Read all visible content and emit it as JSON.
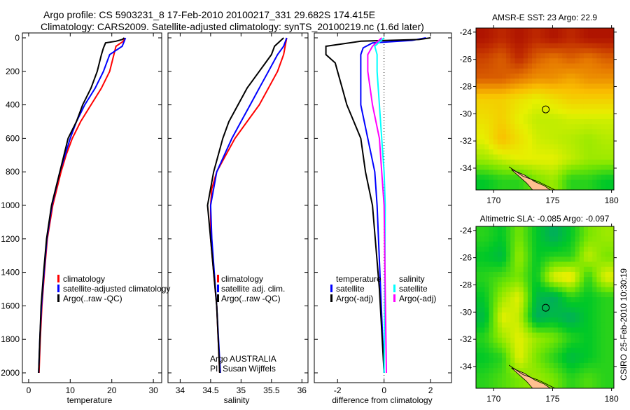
{
  "title_line1": "Argo profile: CS 5903231_8 17-Feb-2010 20100217_331 29.682S 174.415E",
  "title_line2": "Climatology: CARS2009. Satellite-adjusted climatology: synTS_20100219.nc (1.6d later)",
  "side_label": "CSIRO 25-Feb-2010 10:30:19",
  "colors": {
    "climatology": "#ff0000",
    "satellite": "#0000ff",
    "argo": "#000000",
    "sal_satellite": "#00ffff",
    "sal_argo": "#ff00ff"
  },
  "chart_data": [
    {
      "type": "line",
      "xlabel": "temperature",
      "ylabel": "",
      "xlim": [
        -1.5,
        32
      ],
      "ylim": [
        2050,
        0
      ],
      "xticks": [
        0,
        10,
        20,
        30
      ],
      "yticks": [
        0,
        200,
        400,
        600,
        800,
        1000,
        1200,
        1400,
        1600,
        1800,
        2000
      ],
      "legend": [
        "climatology",
        "satellite-adjusted climatology",
        "Argo(..raw -QC)"
      ],
      "legend_position": "lower-middle",
      "series": [
        {
          "name": "climatology",
          "color": "#ff0000",
          "depth": [
            0,
            20,
            50,
            100,
            200,
            300,
            400,
            500,
            600,
            700,
            800,
            1000,
            1200,
            1400,
            1600,
            1800,
            2000
          ],
          "values": [
            23,
            22.8,
            21,
            20.5,
            19.5,
            17.5,
            15,
            12.5,
            10.5,
            9,
            7.8,
            5.8,
            4.5,
            3.8,
            3.2,
            2.8,
            2.5
          ]
        },
        {
          "name": "satellite-adjusted climatology",
          "color": "#0000ff",
          "depth": [
            0,
            20,
            50,
            100,
            200,
            300,
            400,
            500,
            600,
            800,
            1000,
            1200,
            1400,
            1600,
            1800,
            2000
          ],
          "values": [
            23.3,
            23,
            22.5,
            19.5,
            18,
            16,
            13.5,
            11.5,
            10,
            7.5,
            5.6,
            4.4,
            3.7,
            3.1,
            2.7,
            2.4
          ]
        },
        {
          "name": "Argo(..raw -QC)",
          "color": "#000000",
          "depth": [
            0,
            10,
            20,
            30,
            60,
            100,
            200,
            300,
            400,
            500,
            600,
            800,
            1000,
            1200,
            1400,
            1600,
            1800,
            2000
          ],
          "values": [
            23,
            22.5,
            21,
            18.5,
            18,
            17.5,
            16.5,
            15,
            13,
            11.5,
            9.5,
            7.5,
            5.5,
            4.3,
            3.6,
            3,
            2.7,
            2.4
          ]
        }
      ]
    },
    {
      "type": "line",
      "xlabel": "salinity",
      "xlim": [
        33.8,
        36.1
      ],
      "ylim": [
        2050,
        0
      ],
      "xticks": [
        34,
        34.5,
        35,
        35.5,
        36
      ],
      "legend": [
        "climatology",
        "satellite adj. clim.",
        "Argo(..raw -QC)"
      ],
      "annotation": [
        "Argo AUSTRALIA",
        "PI: Susan Wijffels"
      ],
      "series": [
        {
          "name": "climatology",
          "color": "#ff0000",
          "depth": [
            0,
            100,
            200,
            300,
            400,
            500,
            600,
            700,
            800,
            900,
            1000,
            1200,
            1400,
            1600,
            2000
          ],
          "values": [
            35.75,
            35.7,
            35.6,
            35.45,
            35.3,
            35.1,
            34.9,
            34.75,
            34.6,
            34.52,
            34.5,
            34.5,
            34.55,
            34.6,
            34.65
          ]
        },
        {
          "name": "satellite adj. clim.",
          "color": "#0000ff",
          "depth": [
            0,
            50,
            100,
            200,
            300,
            400,
            500,
            600,
            800,
            1000,
            1200,
            1400,
            1600,
            2000
          ],
          "values": [
            35.75,
            35.7,
            35.6,
            35.45,
            35.3,
            35.15,
            35.0,
            34.85,
            34.6,
            34.5,
            34.52,
            34.56,
            34.6,
            34.66
          ]
        },
        {
          "name": "Argo(..raw -QC)",
          "color": "#000000",
          "depth": [
            0,
            50,
            100,
            200,
            300,
            400,
            500,
            600,
            800,
            1000,
            1200,
            1400,
            1600,
            2000
          ],
          "values": [
            35.7,
            35.55,
            35.5,
            35.3,
            35.1,
            34.95,
            34.8,
            34.7,
            34.55,
            34.45,
            34.5,
            34.55,
            34.6,
            34.65
          ]
        }
      ]
    },
    {
      "type": "line",
      "xlabel": "difference from climatology",
      "xlim": [
        -3,
        2.9
      ],
      "ylim": [
        2050,
        0
      ],
      "xticks": [
        -2,
        0,
        2
      ],
      "legend_headers": [
        "temperature",
        "salinity"
      ],
      "legend": [
        "satellite",
        "Argo(-adj)",
        "satellite",
        "Argo(-adj)"
      ],
      "series": [
        {
          "name": "temperature satellite",
          "color": "#0000ff",
          "depth": [
            0,
            15,
            30,
            60,
            100,
            200,
            400,
            600,
            800,
            1000,
            1500,
            2000
          ],
          "values": [
            1.8,
            1.2,
            -0.5,
            -0.9,
            -1,
            -1,
            -1,
            -0.7,
            -0.4,
            -0.3,
            -0.15,
            0
          ]
        },
        {
          "name": "temperature Argo(-adj)",
          "color": "#000000",
          "depth": [
            0,
            10,
            20,
            50,
            100,
            150,
            200,
            300,
            400,
            500,
            600,
            800,
            1000,
            1500,
            2000
          ],
          "values": [
            2,
            1.5,
            -1,
            -2.5,
            -2.5,
            -2.1,
            -2,
            -1.8,
            -1.6,
            -1.3,
            -1,
            -0.8,
            -0.5,
            -0.2,
            0
          ]
        },
        {
          "name": "salinity satellite",
          "color": "#00ffff",
          "depth": [
            0,
            50,
            100,
            200,
            400,
            600,
            800,
            1000,
            1500,
            2000
          ],
          "values": [
            0,
            -0.4,
            -0.3,
            -0.3,
            -0.2,
            -0.1,
            0,
            0.05,
            0.03,
            0
          ]
        },
        {
          "name": "salinity Argo(-adj)",
          "color": "#ff00ff",
          "depth": [
            0,
            50,
            100,
            200,
            400,
            600,
            800,
            1000,
            1500,
            2000
          ],
          "values": [
            -0.1,
            -0.5,
            -0.7,
            -0.7,
            -0.5,
            -0.2,
            -0.1,
            0,
            0.05,
            0.1
          ]
        }
      ]
    },
    {
      "type": "heatmap",
      "title": "AMSR-E SST: 23 Argo: 22.9",
      "xlim": [
        168.5,
        180.2
      ],
      "ylim": [
        -35.6,
        -23.7
      ],
      "xticks": [
        170,
        175,
        180
      ],
      "yticks": [
        -24,
        -26,
        -28,
        -30,
        -32,
        -34
      ],
      "marker": {
        "lon": 174.415,
        "lat": -29.682
      },
      "values": [
        [
          0.95,
          0.9,
          0.95,
          0.9,
          0.95,
          0.9,
          0.95,
          0.95
        ],
        [
          0.85,
          0.8,
          0.9,
          0.8,
          0.75,
          0.8,
          0.75,
          0.8
        ],
        [
          0.8,
          0.8,
          0.75,
          0.7,
          0.7,
          0.65,
          0.7,
          0.7
        ],
        [
          0.55,
          0.55,
          0.5,
          0.45,
          0.5,
          0.55,
          0.55,
          0.55
        ],
        [
          0.5,
          0.55,
          0.45,
          0.4,
          0.4,
          0.42,
          0.42,
          0.42
        ],
        [
          0.45,
          0.6,
          0.5,
          0.42,
          0.4,
          0.38,
          0.35,
          0.38
        ],
        [
          0.35,
          0.4,
          0.45,
          0.45,
          0.45,
          0.4,
          0.35,
          0.35
        ],
        [
          0.15,
          0.2,
          0.2,
          0.3,
          0.35,
          0.2,
          0.2,
          0.15
        ]
      ]
    },
    {
      "type": "heatmap",
      "title": "Altimetric SLA: -0.085 Argo: -0.097",
      "xlim": [
        168.5,
        180.2
      ],
      "ylim": [
        -35.6,
        -23.7
      ],
      "xticks": [
        170,
        175,
        180
      ],
      "yticks": [
        -24,
        -26,
        -28,
        -30,
        -32,
        -34
      ],
      "marker": {
        "lon": 174.415,
        "lat": -29.682
      },
      "values": [
        [
          0.2,
          0.15,
          0.3,
          0.15,
          0.05,
          0.15,
          0.3,
          0.35
        ],
        [
          0.15,
          0.1,
          0.35,
          0.15,
          0.2,
          0.2,
          0.4,
          0.3
        ],
        [
          0.2,
          0.25,
          0.3,
          0.15,
          0.45,
          0.5,
          0.2,
          0.45
        ],
        [
          0.15,
          0.35,
          0.45,
          0.1,
          0.05,
          0.2,
          0.15,
          0.2
        ],
        [
          0.1,
          0.45,
          0.4,
          0.05,
          0.1,
          0.05,
          0.15,
          0.2
        ],
        [
          0.2,
          0.35,
          0.45,
          0.35,
          0.3,
          0.2,
          0.15,
          0.2
        ],
        [
          0.15,
          0.2,
          0.45,
          0.3,
          0.2,
          0.1,
          0.15,
          0.2
        ],
        [
          0.2,
          0.25,
          0.3,
          0.35,
          0.3,
          0.2,
          0.25,
          0.2
        ]
      ]
    }
  ]
}
